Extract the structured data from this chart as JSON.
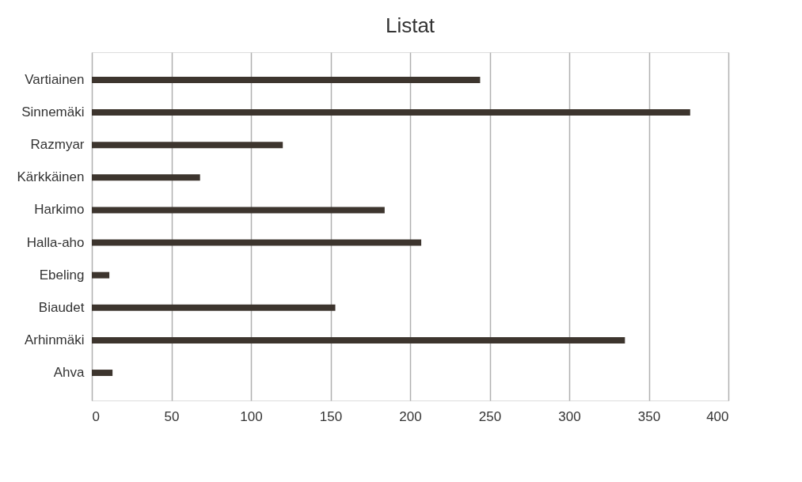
{
  "chart_data": {
    "type": "bar",
    "orientation": "horizontal",
    "title": "Listat",
    "categories": [
      "Vartiainen",
      "Sinnemäki",
      "Razmyar",
      "Kärkkäinen",
      "Harkimo",
      "Halla-aho",
      "Ebeling",
      "Biaudet",
      "Arhinmäki",
      "Ahva"
    ],
    "values": [
      244,
      376,
      120,
      68,
      184,
      207,
      11,
      153,
      335,
      13
    ],
    "color": "#3d352e",
    "xlim": [
      0,
      400
    ],
    "xticks": [
      0,
      50,
      100,
      150,
      200,
      250,
      300,
      350,
      400
    ],
    "grid": "x"
  }
}
